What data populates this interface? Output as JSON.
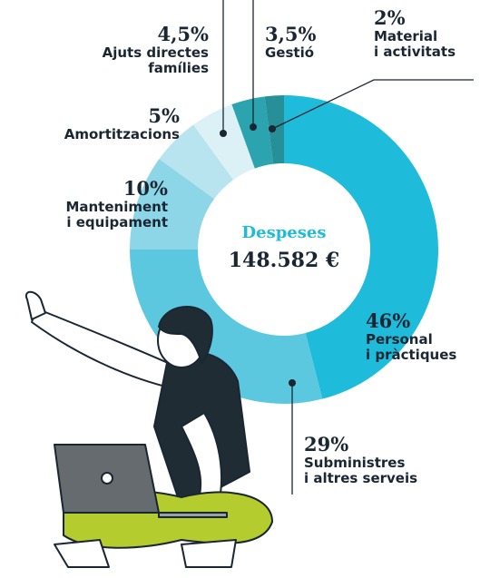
{
  "chart_data": {
    "type": "donut",
    "center_title": "Despeses",
    "center_value": "148.582 €",
    "categories": [
      "Personal\ni pràctiques",
      "Subministres\ni altres serveis",
      "Manteniment\ni equipament",
      "Amortitzacions",
      "Ajuts directes\nfamílies",
      "Gestió",
      "Material\ni activitats"
    ],
    "values": [
      46,
      29,
      10,
      5,
      4.5,
      3.5,
      2
    ],
    "value_labels": [
      "46%",
      "29%",
      "10%",
      "5%",
      "4,5%",
      "3,5%",
      "2%"
    ],
    "colors": [
      "#1ebcda",
      "#5cc8e0",
      "#8dd6e7",
      "#b7e4ef",
      "#dbf1f6",
      "#2ba4b0",
      "#278f98"
    ]
  }
}
